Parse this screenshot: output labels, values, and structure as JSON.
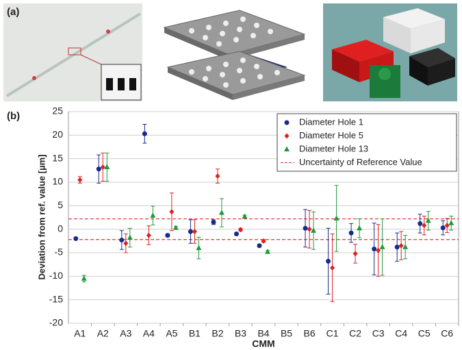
{
  "panel_labels": [
    "(a)",
    "(b)"
  ],
  "chart_data": {
    "type": "errorbar",
    "xlabel": "CMM",
    "ylabel": "Deviation from ref. value [µm]",
    "categories": [
      "A1",
      "A2",
      "A3",
      "A4",
      "A5",
      "B1",
      "B2",
      "B3",
      "B4",
      "B5",
      "B6",
      "C1",
      "C2",
      "C3",
      "C4",
      "C5",
      "C6"
    ],
    "ylim": [
      -20,
      25
    ],
    "yticks": [
      -20,
      -15,
      -10,
      -5,
      0,
      5,
      10,
      15,
      20,
      25
    ],
    "grid": true,
    "legend": "upper right",
    "series": [
      {
        "name": "Diameter Hole 1",
        "color": "#1a2a8a",
        "marker": "circle",
        "values": [
          -2,
          12.8,
          -2.3,
          20.3,
          -1.3,
          -0.5,
          1.5,
          -1,
          -3.5,
          null,
          0.2,
          -6.8,
          -0.8,
          -4.2,
          -3.8,
          1.2,
          0.3
        ],
        "errors": [
          0.2,
          3,
          2,
          2,
          0.3,
          2.5,
          0.5,
          0.3,
          0.3,
          null,
          4,
          7,
          2,
          5.5,
          3,
          2,
          1.5
        ]
      },
      {
        "name": "Diameter Hole 5",
        "color": "#e02020",
        "marker": "diamond",
        "values": [
          10.5,
          13.2,
          -3,
          -1.3,
          3.7,
          -0.5,
          11.3,
          -0.1,
          -2.5,
          null,
          0,
          -8.2,
          -5.2,
          -4.5,
          -3.5,
          0.8,
          0.8
        ],
        "errors": [
          0.7,
          3,
          2,
          2,
          4,
          2.5,
          1.5,
          0.3,
          0.3,
          null,
          4,
          7.2,
          2,
          5.5,
          3,
          2,
          1.5
        ]
      },
      {
        "name": "Diameter Hole 13",
        "color": "#1e9a3a",
        "marker": "triangle",
        "values": [
          -10.5,
          13.2,
          -1.8,
          2.9,
          0.3,
          -4,
          3.5,
          2.7,
          -4.8,
          null,
          -0.3,
          2.3,
          0.2,
          -3.8,
          -3.8,
          1.8,
          1.3
        ],
        "errors": [
          0.7,
          3,
          2,
          2,
          0.3,
          2.3,
          3,
          0.3,
          0.3,
          null,
          4,
          7,
          2,
          6,
          2.5,
          2,
          1.5
        ]
      }
    ],
    "reference": {
      "name": "Uncertainty of Reference Value",
      "color": "#e03030",
      "values": [
        2.2,
        -2.2
      ]
    }
  }
}
